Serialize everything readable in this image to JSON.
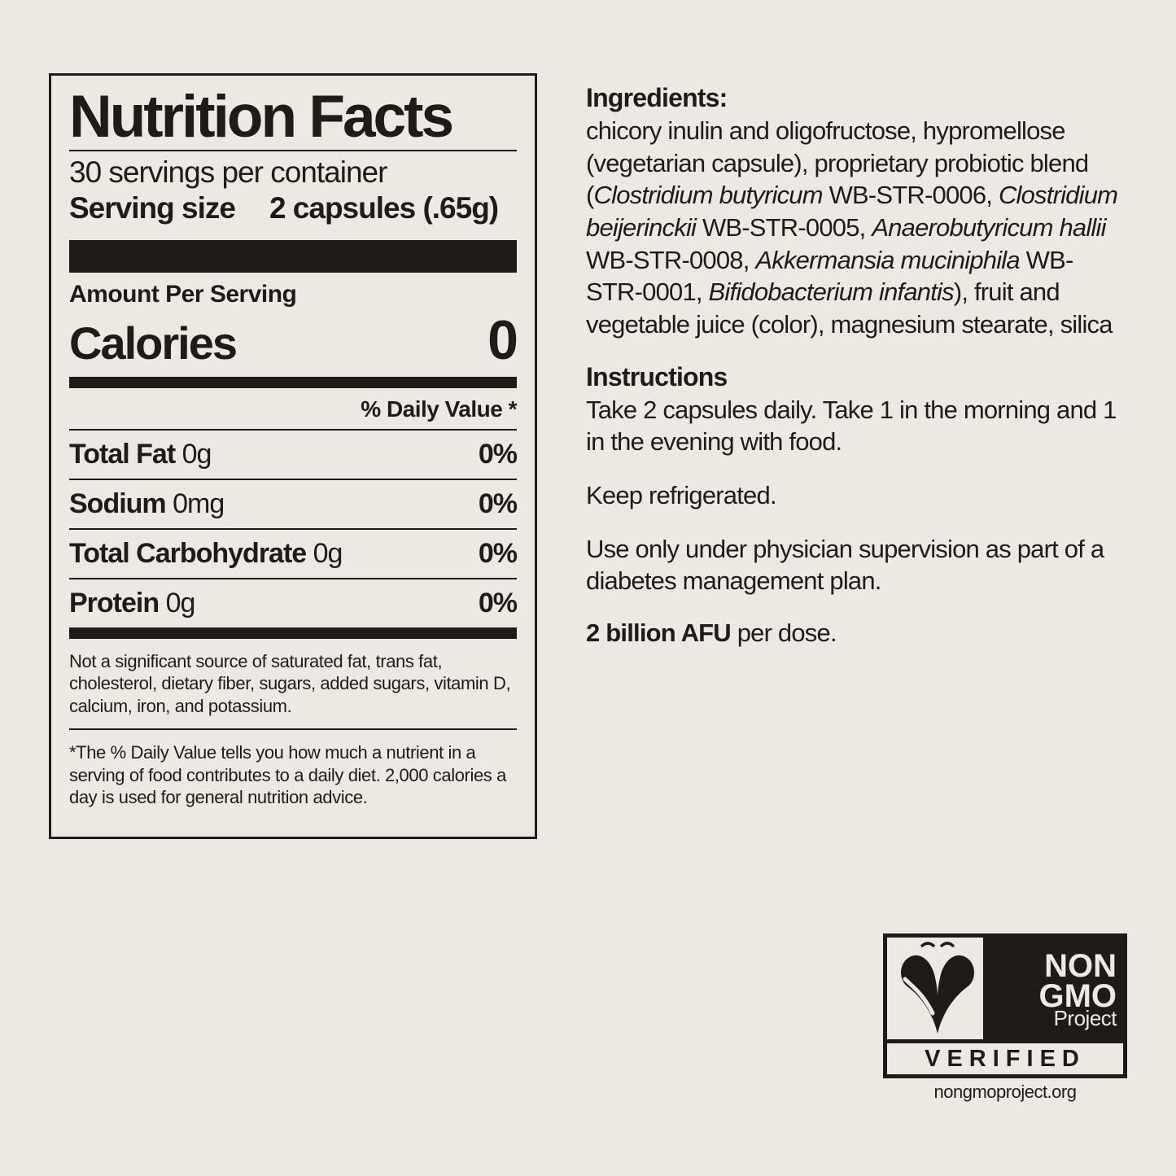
{
  "colors": {
    "bg": "#ece9e2",
    "ink": "#1f1c17"
  },
  "nf": {
    "title": "Nutrition Facts",
    "servings_per_container": "30 servings per container",
    "serving_size_label": "Serving size",
    "serving_size_value": "2 capsules (.65g)",
    "amount_per_serving": "Amount Per Serving",
    "calories_label": "Calories",
    "calories_value": "0",
    "dv_header": "% Daily Value *",
    "nutrients": [
      {
        "name": "Total Fat",
        "amount": "0g",
        "dv": "0%"
      },
      {
        "name": "Sodium",
        "amount": "0mg",
        "dv": "0%"
      },
      {
        "name": "Total Carbohydrate",
        "amount": "0g",
        "dv": "0%"
      },
      {
        "name": "Protein",
        "amount": "0g",
        "dv": "0%"
      }
    ],
    "footnote1": "Not a significant source of saturated fat, trans fat, cholesterol, dietary fiber, sugars, added sugars, vitamin D, calcium, iron, and potassium.",
    "footnote2": "*The % Daily Value tells you how much a nutrient in a serving of food contributes to a daily diet. 2,000 calories a day is used for general nutrition advice."
  },
  "right": {
    "ingredients_head": "Ingredients:",
    "ingredients_body_html": "chicory inulin and oligofructose, hypromellose (vegetarian capsule), proprietary probiotic blend (<em>Clostridium butyricum</em> WB-STR-0006, <em>Clostridium beijerinckii</em> WB-STR-0005, <em>Anaerobutyricum hallii</em> WB-STR-0008, <em>Akkermansia muciniphila</em> WB-STR-0001, <em>Bifidobacterium infantis</em>), fruit and vegetable juice (color), magnesium stearate, silica",
    "instructions_head": "Instructions",
    "instructions_body": "Take 2 capsules daily. Take 1 in the morning and 1 in the evening with food.",
    "storage": "Keep refrigerated.",
    "warning": "Use only under physician supervision as part of a diabetes management plan.",
    "afu_bold": "2 billion AFU",
    "afu_rest": " per dose."
  },
  "logo": {
    "non": "NON",
    "gmo": "GMO",
    "project": "Project",
    "verified": "VERIFIED",
    "url": "nongmoproject.org"
  }
}
